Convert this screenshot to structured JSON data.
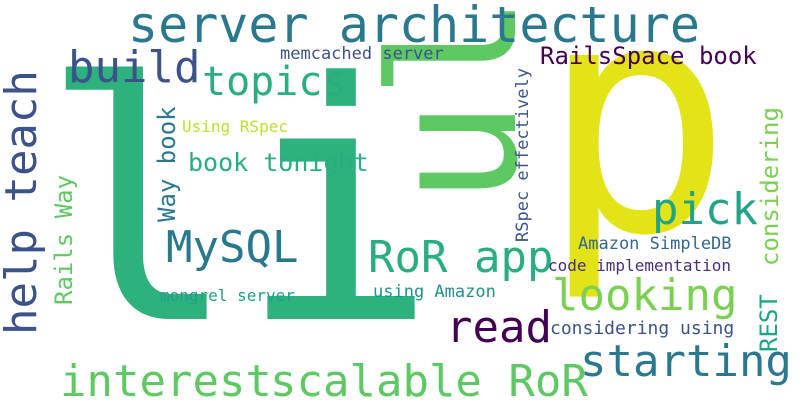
{
  "word_cloud": {
    "background": "#ffffff",
    "words": [
      {
        "text": "li",
        "color": "#2db27d"
      },
      {
        "text": "p",
        "color": "#e2e418"
      },
      {
        "text": "ul",
        "color": "#5ec962"
      },
      {
        "text": "server architecture",
        "color": "#2a788e"
      },
      {
        "text": "build",
        "color": "#3b528b"
      },
      {
        "text": "topics",
        "color": "#28ae80"
      },
      {
        "text": "memcached server",
        "color": "#3b528b"
      },
      {
        "text": "RailsSpace book",
        "color": "#440154"
      },
      {
        "text": "help teach",
        "color": "#3b528b"
      },
      {
        "text": "Using RSpec",
        "color": "#bddf26"
      },
      {
        "text": "Way book",
        "color": "#2a788e"
      },
      {
        "text": "book tonight",
        "color": "#28ae80"
      },
      {
        "text": "Rails Way",
        "color": "#5ec962"
      },
      {
        "text": "MySQL",
        "color": "#2a788e"
      },
      {
        "text": "RoR app",
        "color": "#28ae80"
      },
      {
        "text": "pick",
        "color": "#20a486"
      },
      {
        "text": "RSpec effectively",
        "color": "#3b528b"
      },
      {
        "text": "considering",
        "color": "#7ad151"
      },
      {
        "text": "Amazon SimpleDB",
        "color": "#31688e"
      },
      {
        "text": "code implementation",
        "color": "#472d7b"
      },
      {
        "text": "looking",
        "color": "#7ad151"
      },
      {
        "text": "mongrel server",
        "color": "#1f9e89"
      },
      {
        "text": "using Amazon",
        "color": "#21918c"
      },
      {
        "text": "read",
        "color": "#440154"
      },
      {
        "text": "considering using",
        "color": "#3b528b"
      },
      {
        "text": "REST",
        "color": "#20a486"
      },
      {
        "text": "starting",
        "color": "#2a788e"
      },
      {
        "text": "interest",
        "color": "#5ec962"
      },
      {
        "text": "scalable RoR",
        "color": "#5ec962"
      }
    ]
  }
}
